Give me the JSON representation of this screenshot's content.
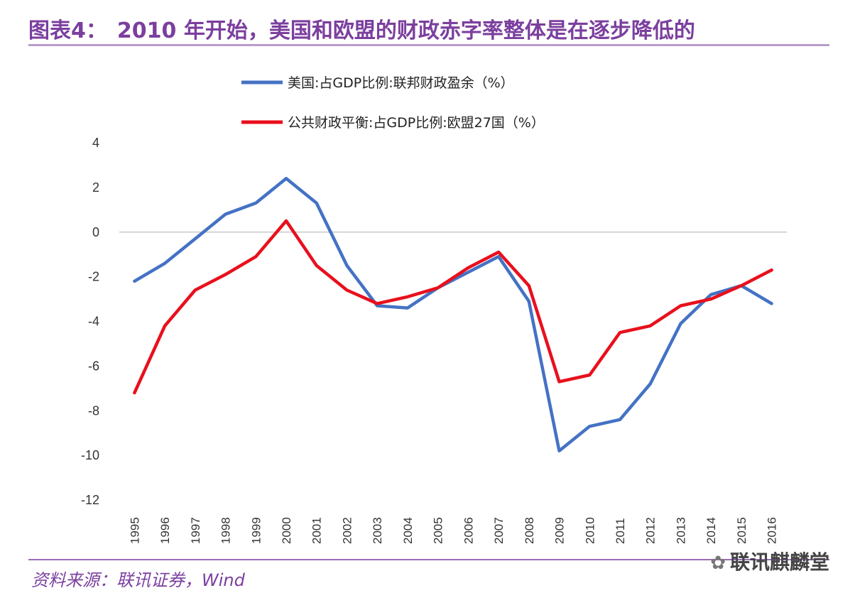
{
  "header": {
    "label": "图表4：",
    "title": "2010 年开始，美国和欧盟的财政赤字率整体是在逐步降低的"
  },
  "footer": {
    "source": "资料来源：联讯证券，Wind",
    "watermark": "联讯麒麟堂",
    "watermark_icon": "wechat-icon"
  },
  "chart_data": {
    "type": "line",
    "x": [
      "1995",
      "1996",
      "1997",
      "1998",
      "1999",
      "2000",
      "2001",
      "2002",
      "2003",
      "2004",
      "2005",
      "2006",
      "2007",
      "2008",
      "2009",
      "2010",
      "2011",
      "2012",
      "2013",
      "2014",
      "2015",
      "2016"
    ],
    "series": [
      {
        "name": "美国:占GDP比例:联邦财政盈余（%）",
        "color": "#4472c4",
        "values": [
          -2.2,
          -1.4,
          -0.3,
          0.8,
          1.3,
          2.4,
          1.3,
          -1.5,
          -3.3,
          -3.4,
          -2.5,
          -1.8,
          -1.1,
          -3.1,
          -9.8,
          -8.7,
          -8.4,
          -6.8,
          -4.1,
          -2.8,
          -2.4,
          -3.2
        ]
      },
      {
        "name": "公共财政平衡:占GDP比例:欧盟27国（%）",
        "color": "#e8101c",
        "values": [
          -7.2,
          -4.2,
          -2.6,
          -1.9,
          -1.1,
          0.5,
          -1.5,
          -2.6,
          -3.2,
          -2.9,
          -2.5,
          -1.6,
          -0.9,
          -2.4,
          -6.7,
          -6.4,
          -4.5,
          -4.2,
          -3.3,
          -3.0,
          -2.4,
          -1.7
        ]
      }
    ],
    "y_ticks": [
      "4",
      "2",
      "0",
      "-2",
      "-4",
      "-6",
      "-8",
      "-10",
      "-12"
    ],
    "ylim": [
      -12,
      4
    ],
    "zero_line": true,
    "grid": false,
    "legend_position": "top"
  }
}
